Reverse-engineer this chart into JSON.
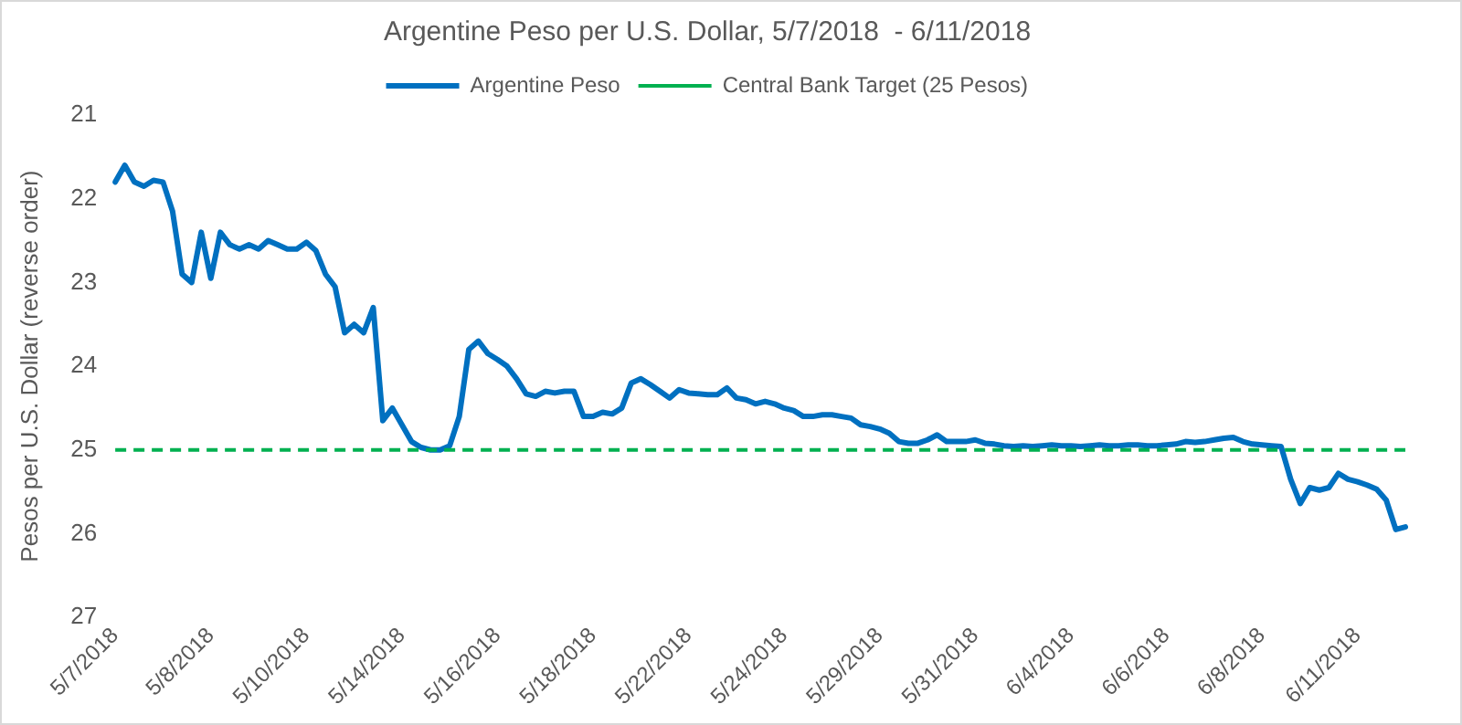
{
  "chart_data": {
    "type": "line",
    "title": "Argentine Peso per U.S. Dollar, 5/7/2018  - 6/11/2018",
    "ylabel": "Pesos per U.S. Dollar (reverse order)",
    "categories": [
      "5/7/2018",
      null,
      null,
      null,
      null,
      null,
      null,
      null,
      null,
      null,
      "5/8/2018",
      null,
      null,
      null,
      null,
      null,
      null,
      null,
      null,
      null,
      "5/10/2018",
      null,
      null,
      null,
      null,
      null,
      null,
      null,
      null,
      null,
      "5/14/2018",
      null,
      null,
      null,
      null,
      null,
      null,
      null,
      null,
      null,
      "5/16/2018",
      null,
      null,
      null,
      null,
      null,
      null,
      null,
      null,
      null,
      "5/18/2018",
      null,
      null,
      null,
      null,
      null,
      null,
      null,
      null,
      null,
      "5/22/2018",
      null,
      null,
      null,
      null,
      null,
      null,
      null,
      null,
      null,
      "5/24/2018",
      null,
      null,
      null,
      null,
      null,
      null,
      null,
      null,
      null,
      "5/29/2018",
      null,
      null,
      null,
      null,
      null,
      null,
      null,
      null,
      null,
      "5/31/2018",
      null,
      null,
      null,
      null,
      null,
      null,
      null,
      null,
      null,
      "6/4/2018",
      null,
      null,
      null,
      null,
      null,
      null,
      null,
      null,
      null,
      "6/6/2018",
      null,
      null,
      null,
      null,
      null,
      null,
      null,
      null,
      null,
      "6/8/2018",
      null,
      null,
      null,
      null,
      null,
      null,
      null,
      null,
      null,
      "6/11/2018",
      null,
      null,
      null,
      null,
      null
    ],
    "series": [
      {
        "name": "Argentine Peso",
        "color": "#0070c0",
        "values": [
          21.8,
          21.6,
          21.8,
          21.85,
          21.78,
          21.8,
          22.15,
          22.9,
          23.0,
          22.4,
          22.95,
          22.4,
          22.55,
          22.6,
          22.55,
          22.6,
          22.5,
          22.55,
          22.6,
          22.6,
          22.52,
          22.62,
          22.9,
          23.05,
          23.6,
          23.5,
          23.6,
          23.3,
          24.65,
          24.5,
          24.7,
          24.9,
          24.97,
          25.0,
          25.0,
          24.95,
          24.6,
          23.8,
          23.7,
          23.85,
          23.92,
          24.0,
          24.15,
          24.33,
          24.36,
          24.3,
          24.32,
          24.3,
          24.3,
          24.6,
          24.6,
          24.55,
          24.57,
          24.5,
          24.2,
          24.15,
          24.22,
          24.3,
          24.38,
          24.28,
          24.32,
          24.33,
          24.34,
          24.34,
          24.26,
          24.38,
          24.4,
          24.45,
          24.42,
          24.45,
          24.5,
          24.53,
          24.6,
          24.6,
          24.58,
          24.58,
          24.6,
          24.62,
          24.7,
          24.72,
          24.75,
          24.8,
          24.9,
          24.92,
          24.92,
          24.88,
          24.82,
          24.9,
          24.9,
          24.9,
          24.88,
          24.92,
          24.93,
          24.95,
          24.96,
          24.95,
          24.96,
          24.95,
          24.94,
          24.95,
          24.95,
          24.96,
          24.95,
          24.94,
          24.95,
          24.95,
          24.94,
          24.94,
          24.95,
          24.95,
          24.94,
          24.93,
          24.9,
          24.91,
          24.9,
          24.88,
          24.86,
          24.85,
          24.9,
          24.93,
          24.94,
          24.95,
          24.96,
          25.35,
          25.64,
          25.45,
          25.48,
          25.45,
          25.28,
          25.35,
          25.38,
          25.42,
          25.47,
          25.6,
          25.95,
          25.92
        ]
      }
    ],
    "ylim": [
      27,
      21
    ],
    "yticks": [
      21,
      22,
      23,
      24,
      25,
      26,
      27
    ],
    "ref_lines": [
      {
        "axis": "y",
        "value": 25,
        "label": "Central Bank Target (25 Pesos)",
        "color": "#00b050",
        "line_style": "dashed"
      }
    ],
    "grid": false,
    "legend": "top",
    "marker": "none",
    "line_style": "solid"
  }
}
